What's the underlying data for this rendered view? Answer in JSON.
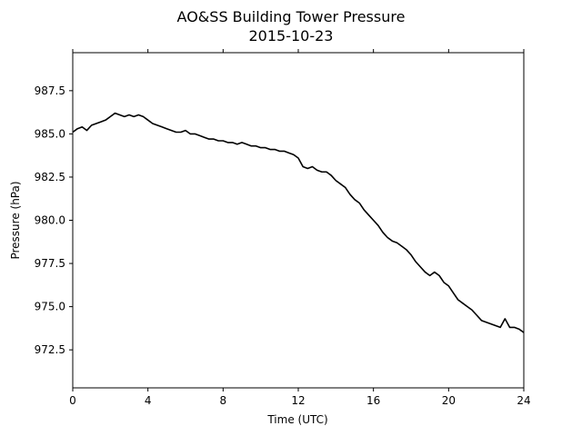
{
  "chart_data": {
    "type": "line",
    "title": "AO&SS Building Tower Pressure",
    "subtitle": "2015-10-23",
    "xlabel": "Time (UTC)",
    "ylabel": "Pressure (hPa)",
    "xlim": [
      0,
      24
    ],
    "ylim": [
      970.3,
      989.7
    ],
    "x_ticks": [
      0,
      4,
      8,
      12,
      16,
      20,
      24
    ],
    "x_tick_labels": [
      "0",
      "4",
      "8",
      "12",
      "16",
      "20",
      "24"
    ],
    "y_ticks": [
      972.5,
      975.0,
      977.5,
      980.0,
      982.5,
      985.0,
      987.5
    ],
    "y_tick_labels": [
      "972.5",
      "975.0",
      "977.5",
      "980.0",
      "982.5",
      "985.0",
      "987.5"
    ],
    "grid": false,
    "line_color": "#000000",
    "series": [
      {
        "x": [
          0,
          0.25,
          0.5,
          0.75,
          1.0,
          1.25,
          1.5,
          1.75,
          2.0,
          2.25,
          2.5,
          2.75,
          3.0,
          3.25,
          3.5,
          3.75,
          4.0,
          4.25,
          4.5,
          4.75,
          5.0,
          5.25,
          5.5,
          5.75,
          6.0,
          6.25,
          6.5,
          6.75,
          7.0,
          7.25,
          7.5,
          7.75,
          8.0,
          8.25,
          8.5,
          8.75,
          9.0,
          9.25,
          9.5,
          9.75,
          10.0,
          10.25,
          10.5,
          10.75,
          11.0,
          11.25,
          11.5,
          11.75,
          12.0,
          12.25,
          12.5,
          12.75,
          13.0,
          13.25,
          13.5,
          13.75,
          14.0,
          14.25,
          14.5,
          14.75,
          15.0,
          15.25,
          15.5,
          15.75,
          16.0,
          16.25,
          16.5,
          16.75,
          17.0,
          17.25,
          17.5,
          17.75,
          18.0,
          18.25,
          18.5,
          18.75,
          19.0,
          19.25,
          19.5,
          19.75,
          20.0,
          20.25,
          20.5,
          20.75,
          21.0,
          21.25,
          21.5,
          21.75,
          22.0,
          22.25,
          22.5,
          22.75,
          23.0,
          23.25,
          23.5,
          23.75,
          24.0
        ],
        "values": [
          985.1,
          985.3,
          985.4,
          985.2,
          985.5,
          985.6,
          985.7,
          985.8,
          986.0,
          986.2,
          986.1,
          986.0,
          986.1,
          986.0,
          986.1,
          986.0,
          985.8,
          985.6,
          985.5,
          985.4,
          985.3,
          985.2,
          985.1,
          985.1,
          985.2,
          985.0,
          985.0,
          984.9,
          984.8,
          984.7,
          984.7,
          984.6,
          984.6,
          984.5,
          984.5,
          984.4,
          984.5,
          984.4,
          984.3,
          984.3,
          984.2,
          984.2,
          984.1,
          984.1,
          984.0,
          984.0,
          983.9,
          983.8,
          983.6,
          983.1,
          983.0,
          983.1,
          982.9,
          982.8,
          982.8,
          982.6,
          982.3,
          982.1,
          981.9,
          981.5,
          981.2,
          981.0,
          980.6,
          980.3,
          980.0,
          979.7,
          979.3,
          979.0,
          978.8,
          978.7,
          978.5,
          978.3,
          978.0,
          977.6,
          977.3,
          977.0,
          976.8,
          977.0,
          976.8,
          976.4,
          976.2,
          975.8,
          975.4,
          975.2,
          975.0,
          974.8,
          974.5,
          974.2,
          974.1,
          974.0,
          973.9,
          973.8,
          974.3,
          973.8,
          973.8,
          973.7,
          973.5
        ]
      }
    ]
  }
}
